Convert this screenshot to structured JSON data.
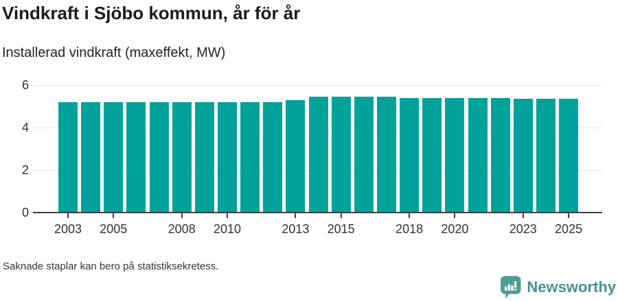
{
  "header": {
    "title": "Vindkraft i Sjöbo kommun, år för år",
    "subtitle": "Installerad vindkraft (maxeffekt, MW)"
  },
  "footer": {
    "note": "Saknade staplar kan bero på statistiksekretess.",
    "brand": "Newsworthy"
  },
  "colors": {
    "bar": "#00a29a",
    "brand_icon": "#4e9c93",
    "brand_text": "#46948b",
    "grid": "#e3e3e3",
    "axis": "#3f3f3f",
    "tick_text": "#333333"
  },
  "chart_data": {
    "type": "bar",
    "title": "Vindkraft i Sjöbo kommun, år för år",
    "subtitle": "Installerad vindkraft (maxeffekt, MW)",
    "ylabel": "Installerad vindkraft (maxeffekt, MW)",
    "xlabel": "",
    "unit": "MW",
    "categories": [
      "2003",
      "2004",
      "2005",
      "2006",
      "2007",
      "2008",
      "2009",
      "2010",
      "2011",
      "2012",
      "2013",
      "2014",
      "2015",
      "2016",
      "2017",
      "2018",
      "2019",
      "2020",
      "2021",
      "2022",
      "2023",
      "2024",
      "2025"
    ],
    "values": [
      5.2,
      5.2,
      5.2,
      5.2,
      5.2,
      5.2,
      5.2,
      5.2,
      5.2,
      5.2,
      5.3,
      5.45,
      5.45,
      5.45,
      5.45,
      5.4,
      5.4,
      5.4,
      5.4,
      5.4,
      5.35,
      5.35,
      5.35
    ],
    "ylim": [
      0,
      6
    ],
    "yticks": [
      0,
      2,
      4,
      6
    ],
    "xtick_labels": [
      "2003",
      "2005",
      "2008",
      "2010",
      "2013",
      "2015",
      "2018",
      "2020",
      "2023",
      "2025"
    ],
    "grid": "horizontal",
    "legend": "none"
  }
}
